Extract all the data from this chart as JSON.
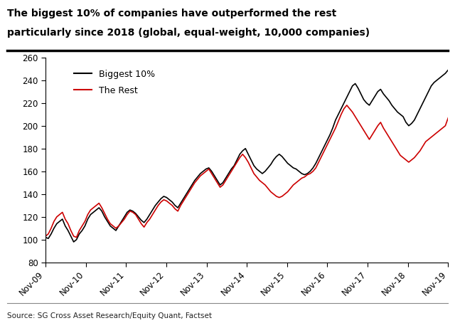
{
  "title_line1": "The biggest 10% of companies have outperformed the rest",
  "title_line2": "particularly since 2018 (global, equal-weight, 10,000 companies)",
  "source": "Source: SG Cross Asset Research/Equity Quant, Factset",
  "ylabel_min": 80,
  "ylabel_max": 260,
  "yticks": [
    80,
    100,
    120,
    140,
    160,
    180,
    200,
    220,
    240,
    260
  ],
  "xtick_labels": [
    "Nov-09",
    "Nov-10",
    "Nov-11",
    "Nov-12",
    "Nov-13",
    "Nov-14",
    "Nov-15",
    "Nov-16",
    "Nov-17",
    "Nov-18",
    "Nov-19"
  ],
  "legend_biggest": "Biggest 10%",
  "legend_rest": "The Rest",
  "color_biggest": "#000000",
  "color_rest": "#cc0000",
  "background_color": "#ffffff",
  "biggest_10_values": [
    102,
    101,
    105,
    110,
    114,
    116,
    118,
    112,
    108,
    103,
    98,
    100,
    105,
    108,
    112,
    118,
    122,
    124,
    126,
    128,
    125,
    120,
    116,
    112,
    110,
    108,
    112,
    116,
    120,
    124,
    126,
    125,
    123,
    120,
    117,
    115,
    118,
    122,
    126,
    130,
    133,
    136,
    138,
    137,
    135,
    133,
    130,
    128,
    132,
    136,
    140,
    144,
    148,
    152,
    155,
    158,
    160,
    162,
    163,
    160,
    156,
    152,
    148,
    150,
    154,
    158,
    162,
    165,
    170,
    175,
    178,
    180,
    175,
    170,
    165,
    162,
    160,
    158,
    160,
    163,
    166,
    170,
    173,
    175,
    173,
    170,
    167,
    165,
    163,
    162,
    160,
    158,
    157,
    158,
    160,
    163,
    167,
    172,
    177,
    182,
    187,
    192,
    198,
    205,
    210,
    215,
    220,
    225,
    230,
    235,
    237,
    233,
    228,
    223,
    220,
    218,
    222,
    226,
    230,
    232,
    228,
    225,
    222,
    218,
    215,
    212,
    210,
    208,
    203,
    200,
    202,
    205,
    210,
    215,
    220,
    225,
    230,
    235,
    238,
    240,
    242,
    244,
    246,
    249
  ],
  "rest_values": [
    103,
    105,
    110,
    116,
    120,
    122,
    124,
    118,
    114,
    108,
    103,
    102,
    108,
    112,
    116,
    122,
    126,
    128,
    130,
    132,
    128,
    123,
    118,
    114,
    112,
    110,
    112,
    115,
    118,
    122,
    125,
    124,
    122,
    118,
    114,
    111,
    115,
    118,
    122,
    126,
    130,
    133,
    135,
    134,
    132,
    130,
    127,
    125,
    130,
    134,
    138,
    142,
    146,
    150,
    153,
    156,
    158,
    160,
    162,
    158,
    154,
    150,
    146,
    148,
    152,
    156,
    160,
    164,
    168,
    172,
    175,
    172,
    168,
    163,
    158,
    155,
    152,
    150,
    148,
    145,
    142,
    140,
    138,
    137,
    138,
    140,
    142,
    145,
    148,
    150,
    152,
    154,
    155,
    157,
    158,
    160,
    163,
    168,
    173,
    178,
    183,
    188,
    193,
    198,
    204,
    210,
    215,
    218,
    215,
    212,
    208,
    204,
    200,
    196,
    192,
    188,
    192,
    196,
    200,
    203,
    198,
    194,
    190,
    186,
    182,
    178,
    174,
    172,
    170,
    168,
    170,
    172,
    175,
    178,
    182,
    186,
    188,
    190,
    192,
    194,
    196,
    198,
    200,
    207
  ]
}
